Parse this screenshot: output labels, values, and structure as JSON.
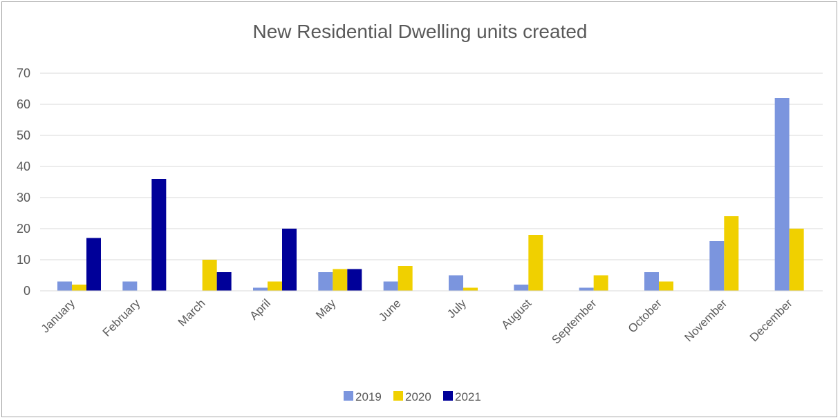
{
  "chart_data": {
    "type": "bar",
    "title": "New Residential Dwelling units created",
    "xlabel": "",
    "ylabel": "",
    "ylim": [
      0,
      70
    ],
    "yticks": [
      "0",
      "10",
      "20",
      "30",
      "40",
      "50",
      "60",
      "70"
    ],
    "grid": true,
    "legend_position": "bottom",
    "categories": [
      "January",
      "February",
      "March",
      "April",
      "May",
      "June",
      "July",
      "August",
      "September",
      "October",
      "November",
      "December"
    ],
    "series": [
      {
        "name": "2019",
        "color": "#7b95de",
        "values": [
          3,
          3,
          0,
          1,
          6,
          3,
          5,
          2,
          1,
          6,
          16,
          62
        ]
      },
      {
        "name": "2020",
        "color": "#f0d000",
        "values": [
          2,
          0,
          10,
          3,
          7,
          8,
          1,
          18,
          5,
          3,
          24,
          20
        ]
      },
      {
        "name": "2021",
        "color": "#000099",
        "values": [
          17,
          36,
          6,
          20,
          7,
          0,
          0,
          0,
          0,
          0,
          0,
          0
        ]
      }
    ]
  }
}
